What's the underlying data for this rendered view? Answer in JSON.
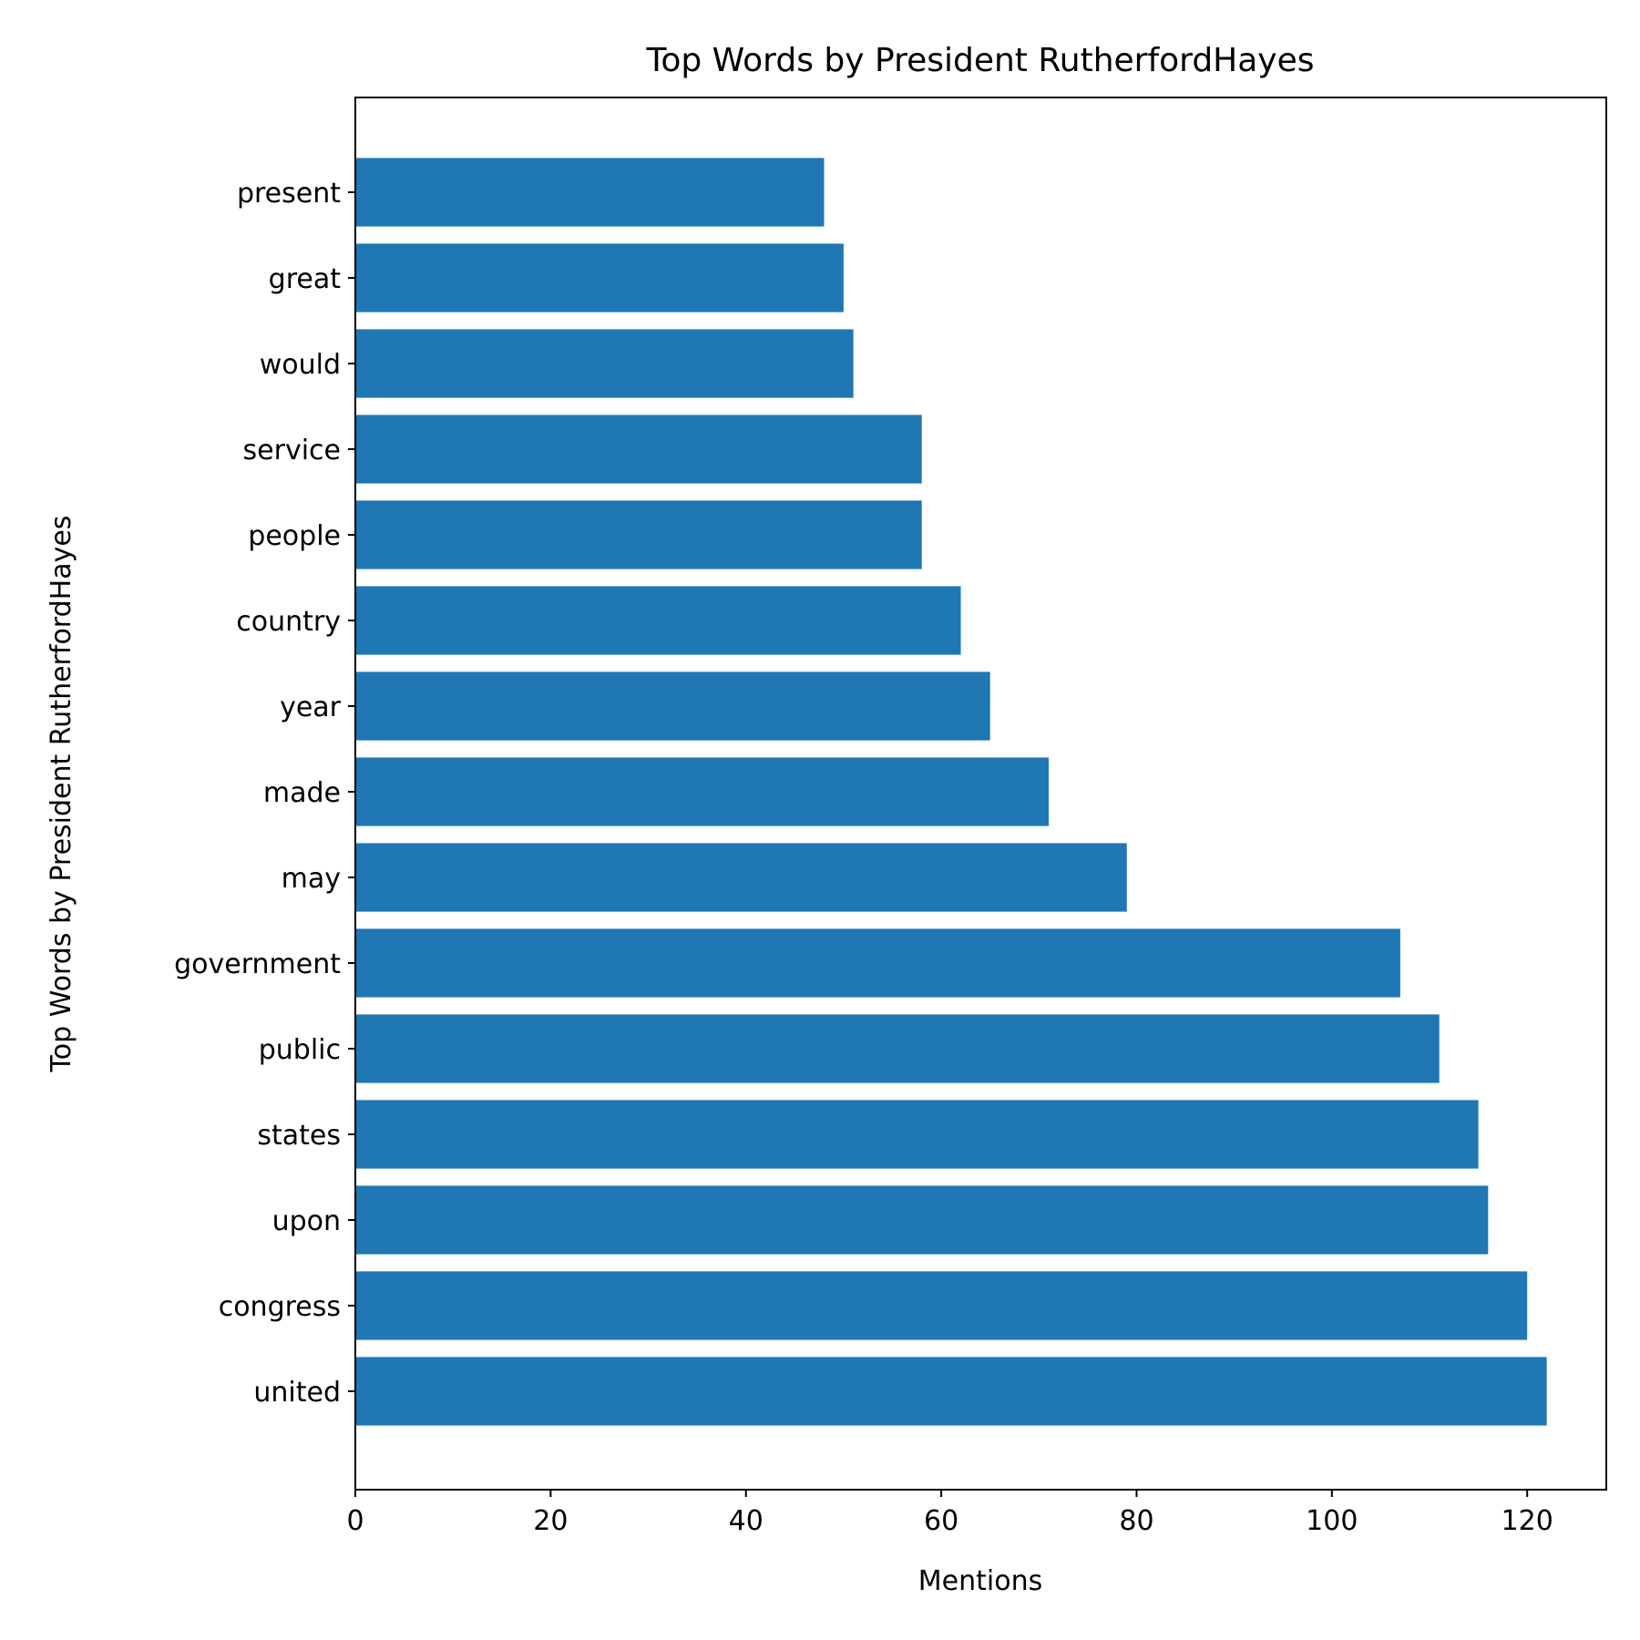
{
  "chart_data": {
    "type": "bar",
    "orientation": "horizontal",
    "title": "Top Words by President RutherfordHayes",
    "xlabel": "Mentions",
    "ylabel": "Top Words by President RutherfordHayes",
    "categories": [
      "united",
      "congress",
      "upon",
      "states",
      "public",
      "government",
      "may",
      "made",
      "year",
      "country",
      "people",
      "service",
      "would",
      "great",
      "present"
    ],
    "values": [
      122,
      120,
      116,
      115,
      111,
      107,
      79,
      71,
      65,
      62,
      58,
      58,
      51,
      50,
      48
    ],
    "xlim": [
      0,
      128.1
    ],
    "xticks": [
      0,
      20,
      40,
      60,
      80,
      100,
      120
    ],
    "grid": false,
    "legend": "none",
    "bar_color": "#1f77b4"
  }
}
